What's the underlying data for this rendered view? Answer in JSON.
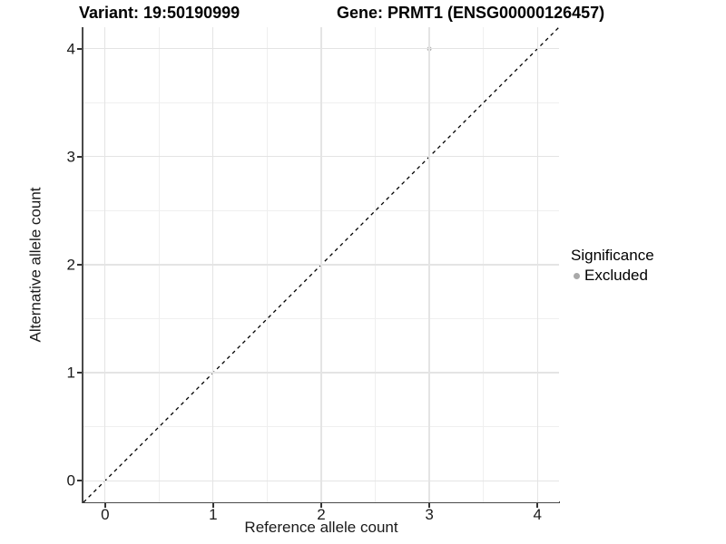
{
  "title": {
    "variant": "Variant: 19:50190999",
    "gene": "Gene: PRMT1 (ENSG00000126457)"
  },
  "axes": {
    "x": {
      "label": "Reference allele count"
    },
    "y": {
      "label": "Alternative allele count"
    }
  },
  "legend": {
    "title": "Significance",
    "items": [
      {
        "label": "Excluded",
        "color": "#a9a9a9"
      }
    ]
  },
  "colors": {
    "background": "#ffffff",
    "grid_major": "#e4e4e4",
    "grid_minor": "#efefef",
    "axis_line": "#4a4a4a",
    "tick_mark": "#333333",
    "tick_text": "#1a1a1a",
    "title_text": "#000000",
    "point": "#b5b5b5",
    "reference_line": "#000000"
  },
  "chart_data": {
    "type": "scatter",
    "title": "Variant: 19:50190999 | Gene: PRMT1 (ENSG00000126457)",
    "xlabel": "Reference allele count",
    "ylabel": "Alternative allele count",
    "xlim": [
      -0.2,
      4.2
    ],
    "ylim": [
      -0.2,
      4.2
    ],
    "xticks": [
      0,
      1,
      2,
      3,
      4
    ],
    "yticks": [
      0,
      1,
      2,
      3,
      4
    ],
    "grid": "major gridlines at integers, minor gridlines at 0.5 steps",
    "legend_position": "right",
    "series": [
      {
        "name": "Excluded",
        "color": "#b5b5b5",
        "point_radius": 2.5,
        "points": [
          {
            "x": 3,
            "y": 4
          }
        ]
      }
    ],
    "reference_line": {
      "slope": 1,
      "intercept": 0,
      "style": "dashed",
      "color": "#000000"
    }
  }
}
